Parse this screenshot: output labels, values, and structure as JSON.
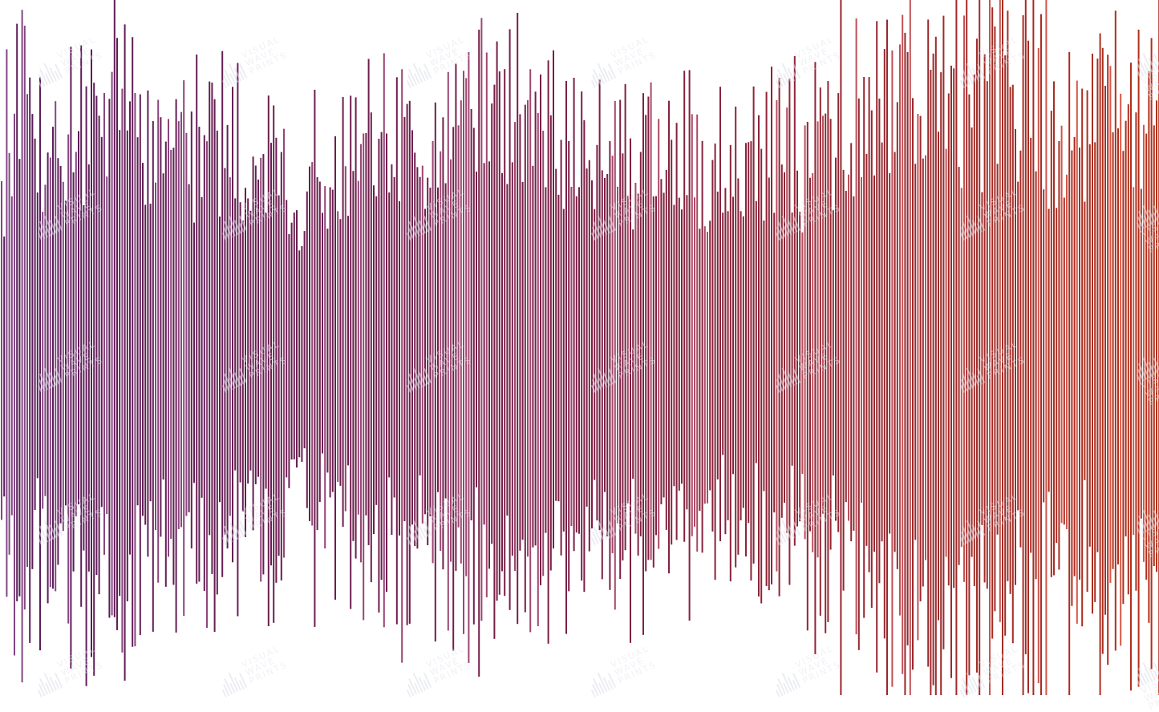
{
  "artwork": {
    "type": "sound-wave-print",
    "colors": {
      "start": "#5a1d5c",
      "middle": "#7a1f45",
      "end": "#b3301a",
      "background": "#ffffff"
    }
  },
  "watermark": {
    "line1": "VISUAL",
    "line2": "WAVE",
    "line3": "PRINTS"
  }
}
